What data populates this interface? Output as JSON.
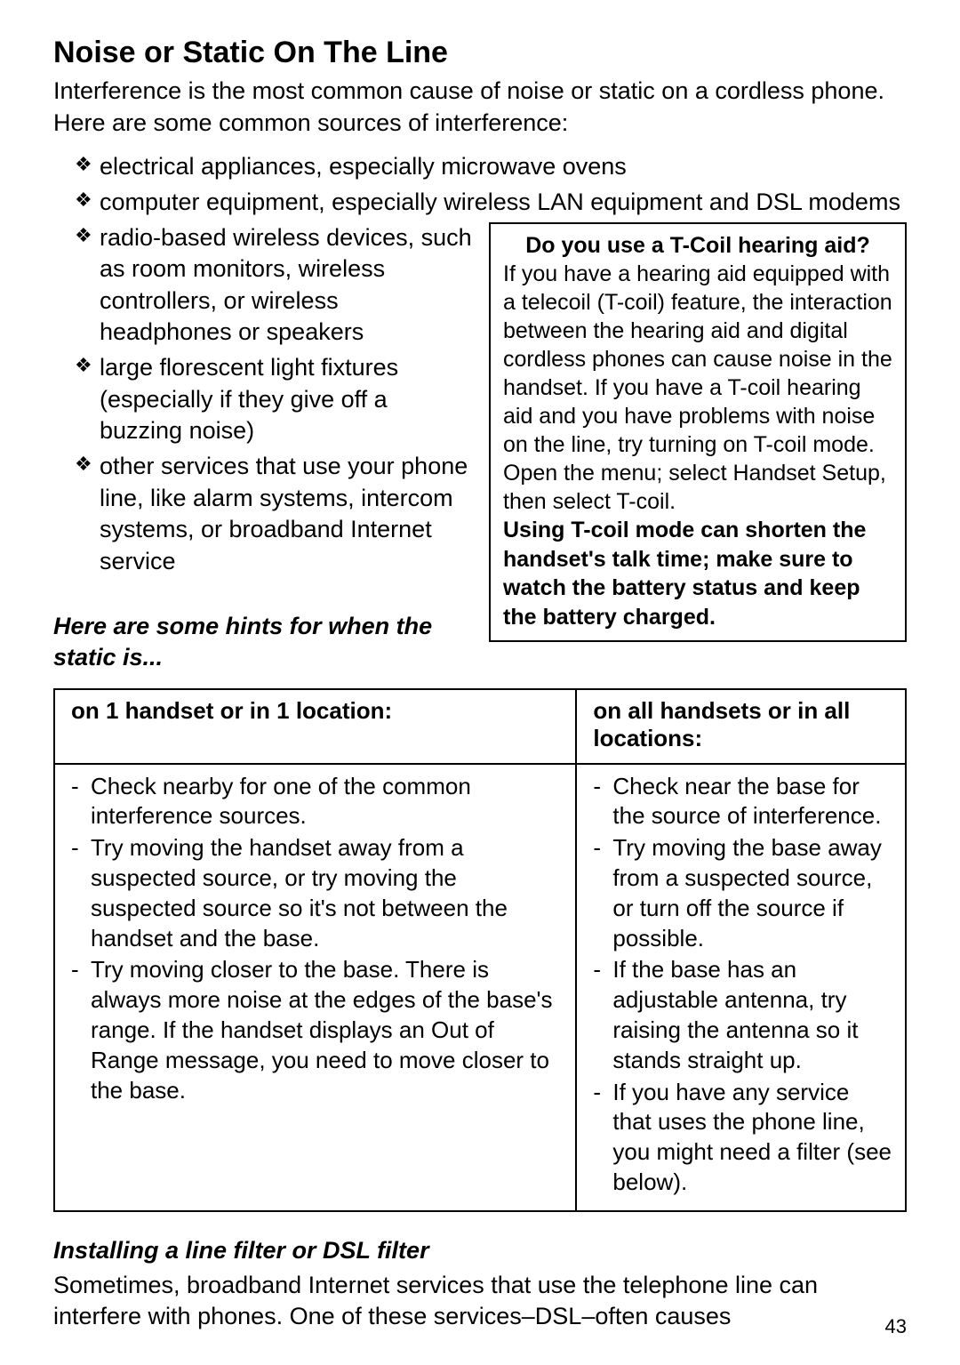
{
  "heading": "Noise or Static On The Line",
  "intro": "Interference is the most common cause of noise or static on a cordless phone. Here are some common sources of interference:",
  "bullets_top": [
    "electrical appliances, especially microwave ovens",
    "computer equipment, especially wireless LAN equipment and DSL modems"
  ],
  "bullets_wrapped": [
    "radio-based wireless devices, such as room monitors, wireless controllers, or wireless headphones or speakers",
    "large florescent light fixtures (especially if they give off a buzzing noise)",
    "other services that use your phone line, like alarm systems, intercom systems, or broadband Internet service"
  ],
  "sidebar": {
    "title": "Do you use a T-Coil hearing aid?",
    "body": "If you have a hearing aid equipped with a telecoil (T-coil) feature, the interaction between the hearing aid and digital cordless phones can cause noise in the handset. If you have a T-coil hearing aid and you have problems with noise on the line, try turning on T-coil mode. Open the menu; select Handset Setup, then select T-coil.",
    "bold_note": "Using T-coil mode can shorten the handset's talk time; make sure to watch the battery status and keep the battery charged."
  },
  "hints_subhead": "Here are some hints for when the static is...",
  "table": {
    "col1_header": "on 1 handset or in 1 location:",
    "col2_header": "on all handsets or in all locations:",
    "col1_items": [
      "Check nearby for one of the common interference sources.",
      "Try moving the handset away from a suspected source, or try moving the suspected source so it's not between the handset and the base.",
      "Try moving closer to the base. There is always more noise at the edges of the base's range. If the handset displays an Out of Range message, you need to move closer to the base."
    ],
    "col2_items": [
      "Check near the base for the source of interference.",
      "Try moving the base away from a suspected source, or turn off the source if possible.",
      "If the base has an adjustable antenna, try raising the antenna so it stands straight up.",
      "If you have any service that uses the phone line, you might need a filter (see below)."
    ]
  },
  "filter_subhead": "Installing a line filter or DSL filter",
  "filter_para": "Sometimes, broadband Internet services that use the telephone line can interfere with phones. One of these services–DSL–often causes",
  "page_number": "43"
}
